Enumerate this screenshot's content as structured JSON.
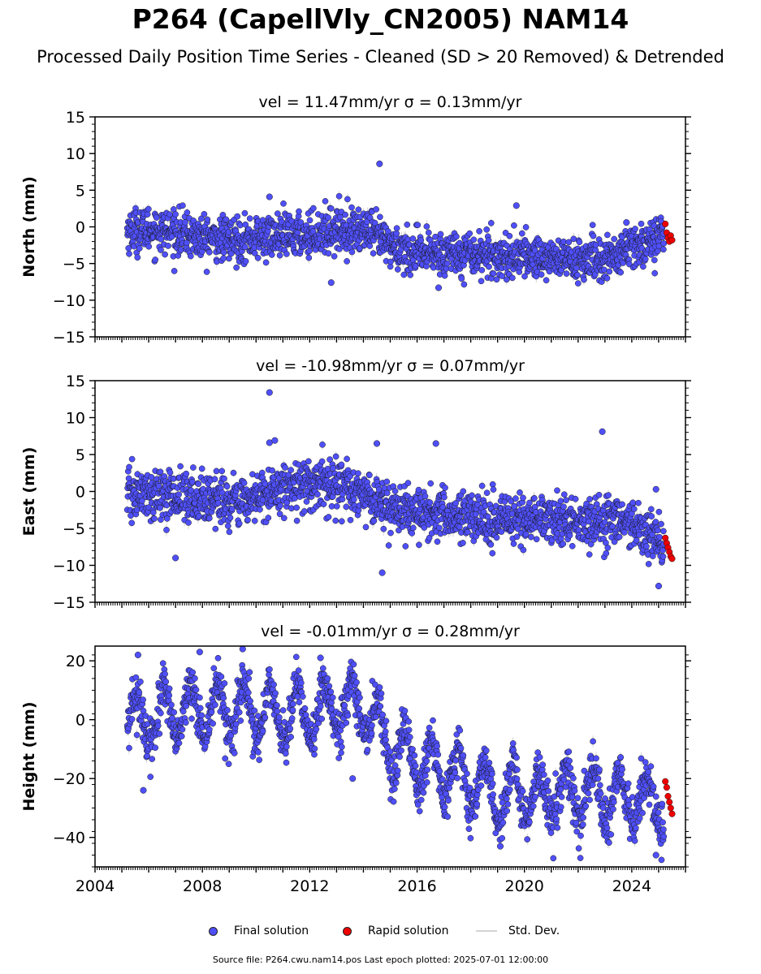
{
  "title": "P264 (CapellVly_CN2005) NAM14",
  "subtitle": "Processed Daily Position Time Series - Cleaned (SD > 20 Removed) & Detrended",
  "legend": {
    "final_label": "Final solution",
    "rapid_label": "Rapid solution",
    "std_label": "Std. Dev."
  },
  "footer": "Source file: P264.cwu.nam14.pos  Last epoch plotted: 2025-07-01 12:00:00",
  "colors": {
    "final": "#4f4ffa",
    "rapid": "#ee0000",
    "std": "#b0b0b0",
    "marker_edge": "#1a1a1a"
  },
  "chart_data": [
    {
      "type": "scatter",
      "title": "vel = 11.47mm/yr   σ = 0.13mm/yr",
      "vel": "11.47mm/yr",
      "sigma": "0.13mm/yr",
      "ylabel": "North (mm)",
      "xlim": [
        2004,
        2026
      ],
      "ylim": [
        -15,
        15
      ],
      "yticks": [
        -15,
        -10,
        -5,
        0,
        5,
        10,
        15
      ],
      "ytick_labels": [
        "−15",
        "−10",
        "−5",
        "0",
        "5",
        "10",
        "15"
      ],
      "xticks": [
        2004,
        2008,
        2012,
        2016,
        2020,
        2024
      ],
      "xtick_labels": [],
      "final_solution_trend": {
        "x": [
          2005.2,
          2006,
          2007,
          2008,
          2009,
          2010,
          2011,
          2012,
          2013,
          2014,
          2015,
          2016,
          2017,
          2018,
          2019,
          2020,
          2021,
          2022,
          2023,
          2024,
          2025.2
        ],
        "y": [
          -0.5,
          -0.3,
          -0.8,
          -1.5,
          -1.8,
          -1.5,
          -1.3,
          -1.0,
          -0.3,
          -0.5,
          -2.5,
          -3.8,
          -3.5,
          -3.5,
          -4.0,
          -4.0,
          -4.2,
          -4.5,
          -4.5,
          -3.0,
          -1.0
        ]
      },
      "scatter_amplitude": 1.5,
      "outliers": [
        {
          "x": 2014.6,
          "y": 8.6
        },
        {
          "x": 2010.5,
          "y": 4.1
        },
        {
          "x": 2019.7,
          "y": 2.9
        },
        {
          "x": 2023.8,
          "y": 0.6
        },
        {
          "x": 2012.8,
          "y": -7.6
        },
        {
          "x": 2016.8,
          "y": -8.3
        }
      ],
      "rapid_solution": {
        "x": [
          2025.25,
          2025.3,
          2025.35,
          2025.4,
          2025.45,
          2025.5
        ],
        "y": [
          0.4,
          -0.8,
          -1.5,
          -2.0,
          -1.2,
          -1.8
        ]
      }
    },
    {
      "type": "scatter",
      "title": "vel = -10.98mm/yr   σ = 0.07mm/yr",
      "vel": "-10.98mm/yr",
      "sigma": "0.07mm/yr",
      "ylabel": "East (mm)",
      "xlim": [
        2004,
        2026
      ],
      "ylim": [
        -15,
        15
      ],
      "yticks": [
        -15,
        -10,
        -5,
        0,
        5,
        10,
        15
      ],
      "ytick_labels": [
        "−15",
        "−10",
        "−5",
        "0",
        "5",
        "10",
        "15"
      ],
      "xticks": [
        2004,
        2008,
        2012,
        2016,
        2020,
        2024
      ],
      "xtick_labels": [],
      "final_solution_trend": {
        "x": [
          2005.2,
          2006,
          2007,
          2008,
          2009,
          2010,
          2011,
          2012,
          2013,
          2014,
          2015,
          2016,
          2017,
          2018,
          2019,
          2020,
          2021,
          2022,
          2023,
          2024,
          2024.8,
          2025.2
        ],
        "y": [
          -0.5,
          -0.5,
          -0.5,
          -0.8,
          -1.5,
          -1.0,
          0.8,
          1.0,
          0.5,
          0.0,
          -2.5,
          -3.0,
          -3.2,
          -3.5,
          -4.0,
          -3.8,
          -4.0,
          -4.2,
          -4.0,
          -4.5,
          -6.0,
          -7.5
        ]
      },
      "scatter_amplitude": 1.7,
      "outliers": [
        {
          "x": 2010.5,
          "y": 13.4
        },
        {
          "x": 2010.5,
          "y": 6.6
        },
        {
          "x": 2010.7,
          "y": 6.9
        },
        {
          "x": 2014.5,
          "y": 6.5
        },
        {
          "x": 2016.7,
          "y": 6.5
        },
        {
          "x": 2022.9,
          "y": 8.1
        },
        {
          "x": 2007.0,
          "y": -9.0
        },
        {
          "x": 2014.7,
          "y": -11.0
        },
        {
          "x": 2025.0,
          "y": -12.8
        },
        {
          "x": 2024.9,
          "y": 0.3
        }
      ],
      "rapid_solution": {
        "x": [
          2025.25,
          2025.3,
          2025.35,
          2025.4,
          2025.45,
          2025.5
        ],
        "y": [
          -6.3,
          -7.0,
          -7.6,
          -8.2,
          -8.8,
          -9.1
        ]
      }
    },
    {
      "type": "scatter",
      "title": "vel = -0.01mm/yr   σ = 0.28mm/yr",
      "vel": "-0.01mm/yr",
      "sigma": "0.28mm/yr",
      "ylabel": "Height (mm)",
      "xlim": [
        2004,
        2026
      ],
      "ylim": [
        -50,
        25
      ],
      "yticks": [
        -40,
        -20,
        0,
        20
      ],
      "ytick_labels": [
        "−40",
        "−20",
        "0",
        "20"
      ],
      "xticks": [
        2004,
        2008,
        2012,
        2016,
        2020,
        2024
      ],
      "xtick_labels": [
        "2004",
        "2008",
        "2012",
        "2016",
        "2020",
        "2024"
      ],
      "final_solution_trend": {
        "x": [
          2005.2,
          2006,
          2007,
          2008,
          2009,
          2010,
          2011,
          2012,
          2013,
          2014,
          2015,
          2016,
          2017,
          2018,
          2019,
          2020,
          2021,
          2022,
          2023,
          2024,
          2025.2
        ],
        "y": [
          0,
          0,
          2,
          3,
          3,
          2,
          2,
          2,
          4,
          5,
          -8,
          -15,
          -18,
          -22,
          -25,
          -25,
          -25,
          -26,
          -26,
          -27,
          -28
        ]
      },
      "seasonal_amplitude": 9,
      "scatter_amplitude": 4,
      "outliers": [
        {
          "x": 2005.6,
          "y": 22
        },
        {
          "x": 2007.9,
          "y": 23
        },
        {
          "x": 2009.5,
          "y": 24
        },
        {
          "x": 2012.4,
          "y": 21
        },
        {
          "x": 2005.8,
          "y": -24
        },
        {
          "x": 2013.6,
          "y": -20
        },
        {
          "x": 2019.1,
          "y": -43
        },
        {
          "x": 2024.9,
          "y": -46
        }
      ],
      "rapid_solution": {
        "x": [
          2025.25,
          2025.3,
          2025.35,
          2025.4,
          2025.45,
          2025.5
        ],
        "y": [
          -21,
          -23,
          -26,
          -28,
          -30,
          -32
        ]
      }
    }
  ]
}
